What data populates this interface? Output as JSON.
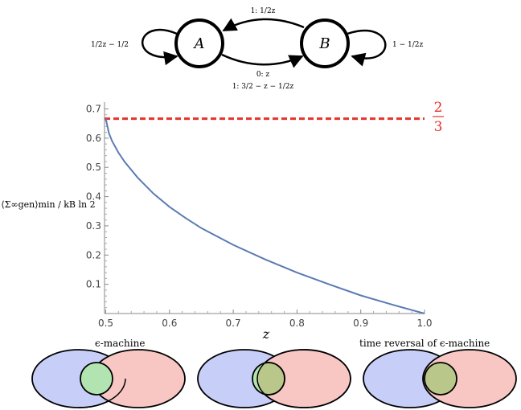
{
  "diagram": {
    "states": [
      {
        "label": "A"
      },
      {
        "label": "B"
      }
    ],
    "edges": {
      "a_self": {
        "text": "1/2z − 1/2"
      },
      "b_to_a": {
        "text": "1: 1/2z"
      },
      "b_self": {
        "text": "1 − 1/2z"
      },
      "a_to_b_0": {
        "text": "0: z"
      },
      "a_to_b_1": {
        "text": "1: 3/2 − z − 1/2z"
      }
    }
  },
  "chart_data": {
    "type": "line",
    "xlabel": "z",
    "ylabel": "⟨Σ∞gen⟩min / kB ln 2",
    "xlim": [
      0.5,
      1.0
    ],
    "ylim": [
      0,
      0.7
    ],
    "x_ticks": [
      "0.5",
      "0.6",
      "0.7",
      "0.8",
      "0.9",
      "1.0"
    ],
    "y_ticks": [
      "0.1",
      "0.2",
      "0.3",
      "0.4",
      "0.5",
      "0.6",
      "0.7"
    ],
    "series": [
      {
        "x": [
          0.5,
          0.505,
          0.51,
          0.52,
          0.53,
          0.55,
          0.575,
          0.6,
          0.625,
          0.65,
          0.7,
          0.75,
          0.8,
          0.85,
          0.9,
          0.95,
          1.0
        ],
        "y": [
          0.667,
          0.617,
          0.59,
          0.55,
          0.518,
          0.465,
          0.41,
          0.365,
          0.327,
          0.292,
          0.235,
          0.185,
          0.14,
          0.1,
          0.062,
          0.03,
          0.0
        ],
        "color": "#5b7bb3"
      }
    ],
    "reference_line": {
      "y": 0.6667,
      "label_num": "2",
      "label_den": "3",
      "color": "#e8312a",
      "style": "dashed"
    }
  },
  "venn": {
    "left_label": "ϵ-machine",
    "right_label": "time reversal of ϵ-machine",
    "colors": {
      "left": "#c7cff8",
      "right": "#f8c7c4",
      "middle": "#b2e4b2",
      "overlap": "#b9c78a"
    }
  }
}
